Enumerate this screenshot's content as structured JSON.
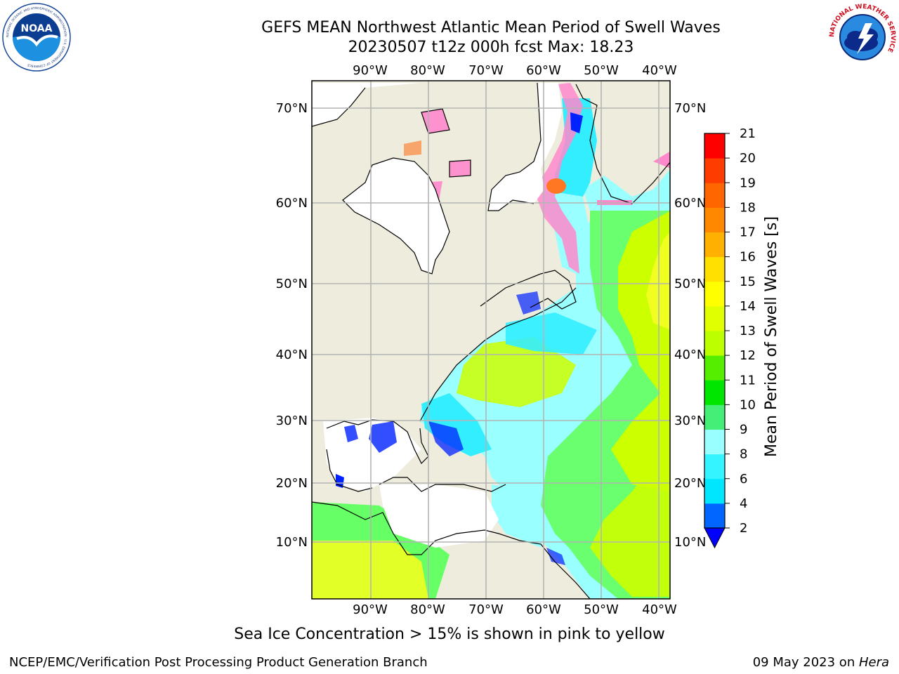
{
  "header": {
    "title": "GEFS MEAN Northwest Atlantic Mean Period of Swell Waves",
    "subtitle": "20230507 t12z 000h fcst   Max: 18.23"
  },
  "logos": {
    "left": {
      "name": "noaa-logo",
      "text": "NOAA",
      "ring_text": "NATIONAL OCEANIC AND ATMOSPHERIC ADMINISTRATION · U.S. DEPARTMENT OF COMMERCE"
    },
    "right": {
      "name": "nws-logo",
      "ring_text": "NATIONAL WEATHER SERVICE"
    }
  },
  "map": {
    "lon_labels": [
      "90°W",
      "80°W",
      "70°W",
      "60°W",
      "50°W",
      "40°W"
    ],
    "lat_labels": [
      "70°N",
      "60°N",
      "50°N",
      "40°N",
      "30°N",
      "20°N",
      "10°N"
    ],
    "colors": {
      "land": "#eeecdc",
      "ocean_low": "#33eeff",
      "ocean_mid": "#99ffff",
      "ocean_green": "#66ff66",
      "ocean_lime": "#ccff00",
      "ocean_yellow": "#f0ff20",
      "ice_pink": "#ff88cc",
      "ice_orange": "#ff7722",
      "low_blue": "#0022ff",
      "grid": "#b4b4b4",
      "coast": "#000000"
    }
  },
  "colorbar": {
    "label": "Mean Period of Swell Waves [s]",
    "ticks": [
      "2",
      "4",
      "6",
      "8",
      "9",
      "10",
      "11",
      "12",
      "13",
      "14",
      "15",
      "16",
      "17",
      "18",
      "19",
      "20",
      "21"
    ],
    "colors": [
      "#0066ff",
      "#00e6ff",
      "#33f4ff",
      "#99ffff",
      "#44ee77",
      "#00e600",
      "#55ee00",
      "#bbff00",
      "#e0ff00",
      "#ffff00",
      "#ffe000",
      "#ffb000",
      "#ff8800",
      "#ff6600",
      "#ff3c00",
      "#ff0000"
    ],
    "extend_color": "#0000ff"
  },
  "caption": "Sea Ice Concentration > 15% is shown in pink to yellow",
  "footer": {
    "left": "NCEP/EMC/Verification Post Processing Product Generation Branch",
    "date": "09 May 2023 on ",
    "machine": "Hera"
  }
}
